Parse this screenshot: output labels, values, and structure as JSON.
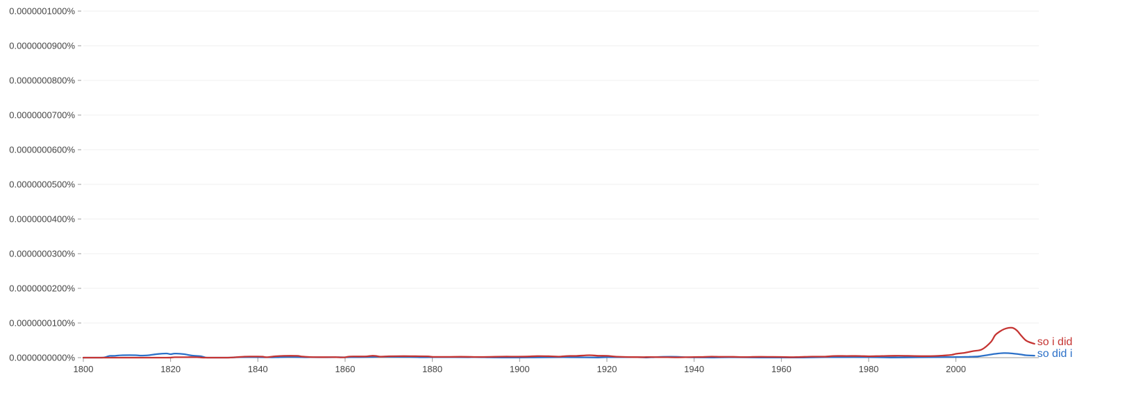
{
  "chart_data": {
    "type": "line",
    "title": "",
    "xlabel": "",
    "ylabel": "",
    "xlim": [
      1800,
      2019
    ],
    "ylim": [
      0,
      1e-06
    ],
    "grid": true,
    "x_ticks": [
      1800,
      1820,
      1840,
      1860,
      1880,
      1900,
      1920,
      1940,
      1960,
      1980,
      2000
    ],
    "x_tick_labels": [
      "1800",
      "1820",
      "1840",
      "1860",
      "1880",
      "1900",
      "1920",
      "1940",
      "1960",
      "1980",
      "2000"
    ],
    "y_ticks": [
      0,
      1e-07,
      2e-07,
      3e-07,
      4e-07,
      5e-07,
      6e-07,
      7e-07,
      8e-07,
      9e-07,
      1e-06
    ],
    "y_tick_labels": [
      "0.0000000000%",
      "0.0000000100%",
      "0.0000000200%",
      "0.0000000300%",
      "0.0000000400%",
      "0.0000000500%",
      "0.0000000600%",
      "0.0000000700%",
      "0.0000000800%",
      "0.0000000900%",
      "0.0000001000%"
    ],
    "legend_placement": "series labels at right end of lines",
    "series": [
      {
        "name": "so i did",
        "color": "#c53432",
        "points": [
          [
            1800,
            0
          ],
          [
            1805,
            0
          ],
          [
            1810,
            0
          ],
          [
            1815,
            0
          ],
          [
            1819,
            0
          ],
          [
            1820,
            3e-10
          ],
          [
            1821,
            1.2e-09
          ],
          [
            1823,
            1.3e-09
          ],
          [
            1826,
            1.3e-09
          ],
          [
            1827,
            5e-10
          ],
          [
            1828,
            0
          ],
          [
            1833,
            0
          ],
          [
            1835,
            1.2e-09
          ],
          [
            1837,
            3e-09
          ],
          [
            1839,
            3.2e-09
          ],
          [
            1841,
            3e-09
          ],
          [
            1842,
            1.3e-09
          ],
          [
            1844,
            4e-09
          ],
          [
            1846,
            5.2e-09
          ],
          [
            1849,
            5.2e-09
          ],
          [
            1850,
            3.5e-09
          ],
          [
            1852,
            1.8e-09
          ],
          [
            1855,
            1.5e-09
          ],
          [
            1858,
            1.5e-09
          ],
          [
            1859,
            8e-10
          ],
          [
            1860,
            1e-09
          ],
          [
            1861,
            3.3e-09
          ],
          [
            1863,
            3.5e-09
          ],
          [
            1865,
            3.7e-09
          ],
          [
            1866,
            5.3e-09
          ],
          [
            1867,
            5e-09
          ],
          [
            1868,
            3e-09
          ],
          [
            1870,
            4e-09
          ],
          [
            1872,
            4.3e-09
          ],
          [
            1875,
            4.3e-09
          ],
          [
            1877,
            4e-09
          ],
          [
            1879,
            3.7e-09
          ],
          [
            1880,
            2.5e-09
          ],
          [
            1883,
            2.2e-09
          ],
          [
            1885,
            2.5e-09
          ],
          [
            1888,
            2.5e-09
          ],
          [
            1890,
            2e-09
          ],
          [
            1893,
            2.2e-09
          ],
          [
            1896,
            3e-09
          ],
          [
            1899,
            3e-09
          ],
          [
            1902,
            3.5e-09
          ],
          [
            1904,
            4.5e-09
          ],
          [
            1907,
            4e-09
          ],
          [
            1909,
            3e-09
          ],
          [
            1911,
            4.8e-09
          ],
          [
            1913,
            5e-09
          ],
          [
            1916,
            7e-09
          ],
          [
            1918,
            5.5e-09
          ],
          [
            1920,
            5.2e-09
          ],
          [
            1922,
            3e-09
          ],
          [
            1925,
            1.8e-09
          ],
          [
            1928,
            1.5e-09
          ],
          [
            1930,
            1.8e-09
          ],
          [
            1932,
            1.5e-09
          ],
          [
            1934,
            1.2e-09
          ],
          [
            1936,
            8e-10
          ],
          [
            1938,
            1.2e-09
          ],
          [
            1940,
            1.8e-09
          ],
          [
            1942,
            2e-09
          ],
          [
            1944,
            3e-09
          ],
          [
            1946,
            2.5e-09
          ],
          [
            1949,
            2.5e-09
          ],
          [
            1951,
            1.8e-09
          ],
          [
            1953,
            2e-09
          ],
          [
            1955,
            2.5e-09
          ],
          [
            1958,
            2.2e-09
          ],
          [
            1960,
            2e-09
          ],
          [
            1962,
            1.5e-09
          ],
          [
            1964,
            1.8e-09
          ],
          [
            1967,
            3e-09
          ],
          [
            1970,
            3e-09
          ],
          [
            1972,
            4.8e-09
          ],
          [
            1975,
            4.8e-09
          ],
          [
            1978,
            4.8e-09
          ],
          [
            1980,
            4e-09
          ],
          [
            1983,
            4.8e-09
          ],
          [
            1986,
            5.5e-09
          ],
          [
            1989,
            5.2e-09
          ],
          [
            1992,
            4.5e-09
          ],
          [
            1995,
            4.8e-09
          ],
          [
            1997,
            6e-09
          ],
          [
            1999,
            8e-09
          ],
          [
            2000,
            1.1e-08
          ],
          [
            2002,
            1.4e-08
          ],
          [
            2004,
            1.9e-08
          ],
          [
            2006,
            2.4e-08
          ],
          [
            2008,
            4.5e-08
          ],
          [
            2009,
            6.5e-08
          ],
          [
            2010,
            7.5e-08
          ],
          [
            2011,
            8.2e-08
          ],
          [
            2012,
            8.58e-08
          ],
          [
            2013,
            8.6e-08
          ],
          [
            2014,
            7.8e-08
          ],
          [
            2015,
            6.3e-08
          ],
          [
            2016,
            5e-08
          ],
          [
            2017,
            4.4e-08
          ],
          [
            2018,
            4e-08
          ]
        ]
      },
      {
        "name": "so did i",
        "color": "#2b70c8",
        "points": [
          [
            1800,
            0
          ],
          [
            1804,
            0
          ],
          [
            1805,
            1.2e-09
          ],
          [
            1806,
            5e-09
          ],
          [
            1807,
            5.2e-09
          ],
          [
            1809,
            7e-09
          ],
          [
            1812,
            7e-09
          ],
          [
            1813,
            6e-09
          ],
          [
            1815,
            7e-09
          ],
          [
            1817,
            1.05e-08
          ],
          [
            1819,
            1.2e-08
          ],
          [
            1820,
            1e-08
          ],
          [
            1821,
            1.18e-08
          ],
          [
            1823,
            1.02e-08
          ],
          [
            1825,
            6e-09
          ],
          [
            1827,
            4e-09
          ],
          [
            1828,
            5e-10
          ],
          [
            1829,
            0
          ],
          [
            1833,
            0
          ],
          [
            1834,
            5e-10
          ],
          [
            1836,
            1.5e-09
          ],
          [
            1840,
            1.5e-09
          ],
          [
            1842,
            1e-09
          ],
          [
            1844,
            1e-09
          ],
          [
            1847,
            2e-09
          ],
          [
            1850,
            1.2e-09
          ],
          [
            1852,
            1.2e-09
          ],
          [
            1855,
            1e-09
          ],
          [
            1858,
            1.2e-09
          ],
          [
            1860,
            1e-09
          ],
          [
            1863,
            1.5e-09
          ],
          [
            1866,
            2e-09
          ],
          [
            1868,
            2.8e-09
          ],
          [
            1872,
            2.5e-09
          ],
          [
            1875,
            2e-09
          ],
          [
            1877,
            1e-09
          ],
          [
            1880,
            1.2e-09
          ],
          [
            1885,
            1.2e-09
          ],
          [
            1888,
            1e-09
          ],
          [
            1890,
            1.5e-09
          ],
          [
            1893,
            8e-10
          ],
          [
            1896,
            3e-10
          ],
          [
            1900,
            5e-10
          ],
          [
            1905,
            8e-10
          ],
          [
            1910,
            1.2e-09
          ],
          [
            1915,
            8e-10
          ],
          [
            1918,
            5e-10
          ],
          [
            1920,
            1.2e-09
          ],
          [
            1924,
            1.2e-09
          ],
          [
            1927,
            1.5e-09
          ],
          [
            1929,
            5e-10
          ],
          [
            1931,
            1.5e-09
          ],
          [
            1933,
            2.5e-09
          ],
          [
            1936,
            2.5e-09
          ],
          [
            1938,
            1.2e-09
          ],
          [
            1940,
            8e-10
          ],
          [
            1944,
            5e-10
          ],
          [
            1948,
            1e-09
          ],
          [
            1952,
            8e-10
          ],
          [
            1955,
            3e-10
          ],
          [
            1960,
            3e-10
          ],
          [
            1965,
            5e-10
          ],
          [
            1970,
            1.2e-09
          ],
          [
            1975,
            1.5e-09
          ],
          [
            1978,
            1.5e-09
          ],
          [
            1982,
            1e-09
          ],
          [
            1985,
            5e-10
          ],
          [
            1990,
            8e-10
          ],
          [
            1995,
            1.2e-09
          ],
          [
            1999,
            1.8e-09
          ],
          [
            2001,
            2e-09
          ],
          [
            2003,
            2.5e-09
          ],
          [
            2005,
            3.5e-09
          ],
          [
            2007,
            7e-09
          ],
          [
            2009,
            1.1e-08
          ],
          [
            2011,
            1.32e-08
          ],
          [
            2013,
            1.2e-08
          ],
          [
            2015,
            9e-09
          ],
          [
            2016,
            7e-09
          ],
          [
            2018,
            5.8e-09
          ]
        ]
      }
    ]
  }
}
